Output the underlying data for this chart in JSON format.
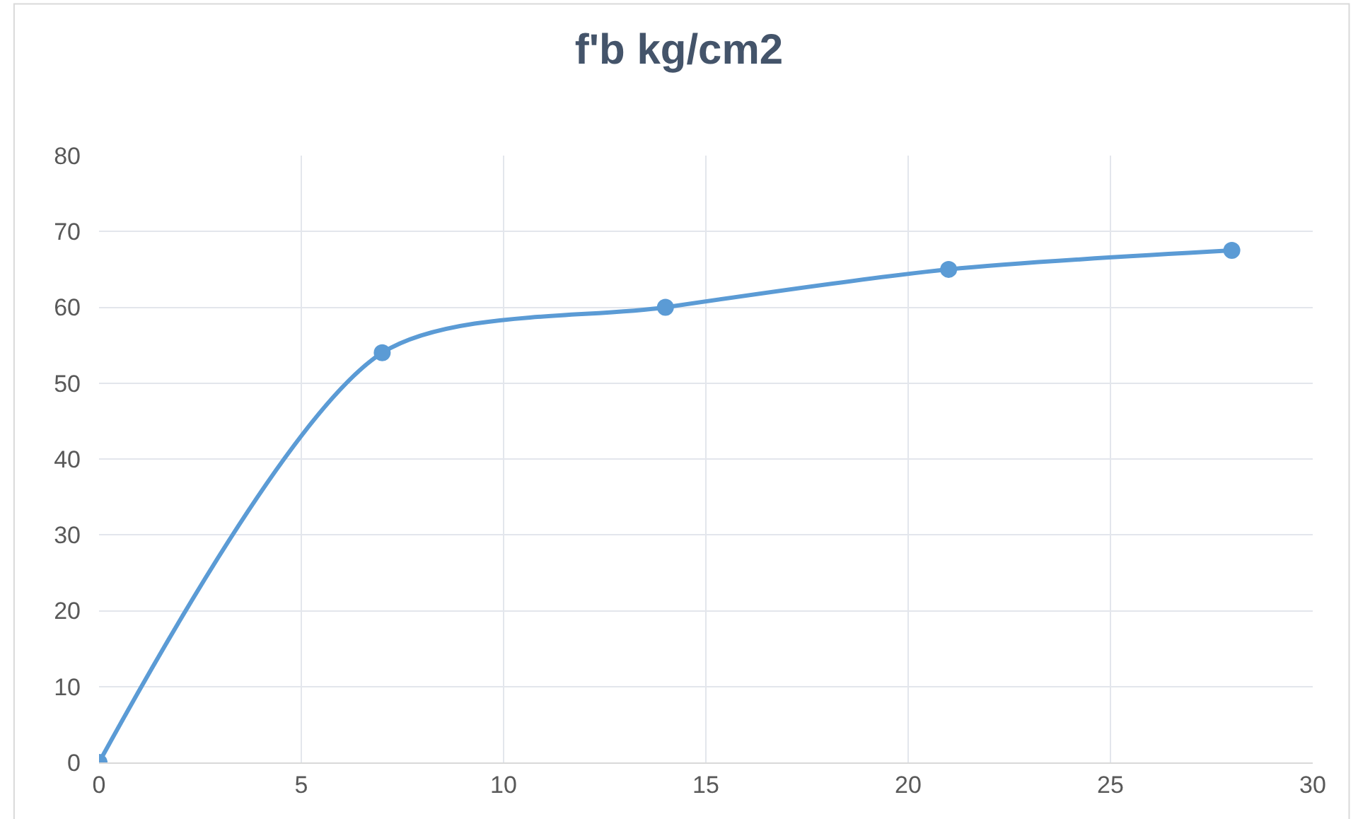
{
  "chart_data": {
    "type": "line",
    "title": "f'b kg/cm2",
    "x": [
      0,
      7,
      14,
      21,
      28
    ],
    "series": [
      {
        "color": "#5b9bd5",
        "values": [
          0,
          54,
          60,
          65,
          67.5
        ]
      }
    ],
    "xlim": [
      0,
      30
    ],
    "xticks": [
      0,
      5,
      10,
      15,
      20,
      25,
      30
    ],
    "ylim": [
      0,
      80
    ],
    "yticks": [
      0,
      10,
      20,
      30,
      40,
      50,
      60,
      70,
      80
    ],
    "grid": true,
    "legend": false,
    "marker": "circle",
    "line_style": "solid"
  }
}
